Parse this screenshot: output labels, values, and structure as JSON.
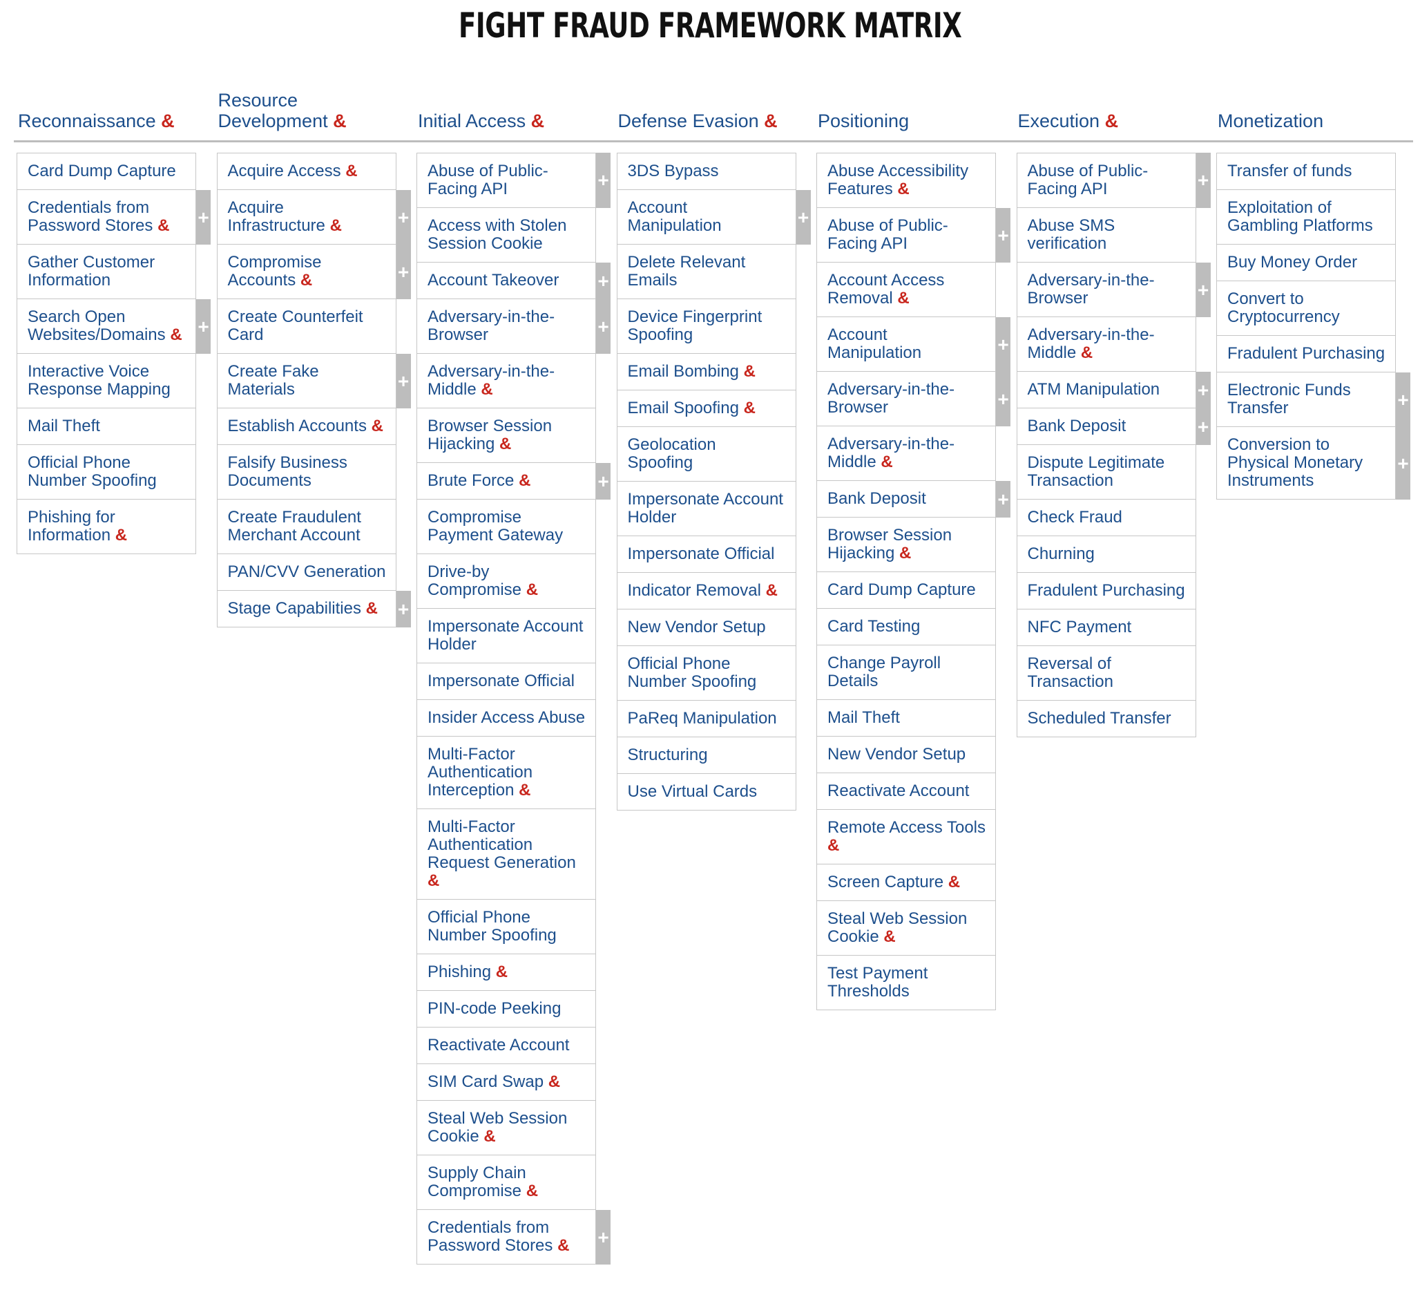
{
  "title": "FIGHT FRAUD FRAMEWORK MATRIX",
  "colors": {
    "text": "#1d4f8c",
    "ampersand": "#c8261d",
    "expand_tab": "#bdbdbd",
    "border": "#c6c6c6"
  },
  "amp_symbol": "&",
  "expand_symbol": "+",
  "columns": [
    {
      "label": "Reconnaissance",
      "amp": true,
      "items": [
        {
          "label": "Card Dump Capture"
        },
        {
          "label": "Credentials from Password Stores",
          "amp": true,
          "plus": true
        },
        {
          "label": "Gather Customer Information"
        },
        {
          "label": "Search Open Websites/Domains",
          "amp": true,
          "plus": true
        },
        {
          "label": "Interactive Voice Response Mapping"
        },
        {
          "label": "Mail Theft"
        },
        {
          "label": "Official Phone Number Spoofing"
        },
        {
          "label": "Phishing for Information",
          "amp": true
        }
      ]
    },
    {
      "label": "Resource Development",
      "amp": true,
      "items": [
        {
          "label": "Acquire Access",
          "amp": true
        },
        {
          "label": "Acquire Infrastructure",
          "amp": true,
          "plus": true
        },
        {
          "label": "Compromise Accounts",
          "amp": true,
          "plus": true
        },
        {
          "label": "Create Counterfeit Card"
        },
        {
          "label": "Create Fake Materials",
          "plus": true
        },
        {
          "label": "Establish Accounts",
          "amp": true
        },
        {
          "label": "Falsify Business Documents"
        },
        {
          "label": "Create Fraudulent Merchant Account"
        },
        {
          "label": "PAN/CVV Generation"
        },
        {
          "label": "Stage Capabilities",
          "amp": true,
          "plus": true
        }
      ]
    },
    {
      "label": "Initial Access",
      "amp": true,
      "items": [
        {
          "label": "Abuse of Public-Facing API",
          "plus": true
        },
        {
          "label": "Access with Stolen Session Cookie"
        },
        {
          "label": "Account Takeover",
          "plus": true
        },
        {
          "label": "Adversary-in-the-Browser",
          "plus": true
        },
        {
          "label": "Adversary-in-the-Middle",
          "amp": true
        },
        {
          "label": "Browser Session Hijacking",
          "amp": true
        },
        {
          "label": "Brute Force",
          "amp": true,
          "plus": true
        },
        {
          "label": "Compromise Payment Gateway"
        },
        {
          "label": "Drive-by Compromise",
          "amp": true
        },
        {
          "label": "Impersonate Account Holder"
        },
        {
          "label": "Impersonate Official"
        },
        {
          "label": "Insider Access Abuse"
        },
        {
          "label": "Multi-Factor Authentication Interception",
          "amp": true
        },
        {
          "label": "Multi-Factor Authentication Request Generation",
          "amp": true
        },
        {
          "label": "Official Phone Number Spoofing"
        },
        {
          "label": "Phishing",
          "amp": true
        },
        {
          "label": "PIN-code Peeking"
        },
        {
          "label": "Reactivate Account"
        },
        {
          "label": "SIM Card Swap",
          "amp": true
        },
        {
          "label": "Steal Web Session Cookie",
          "amp": true
        },
        {
          "label": "Supply Chain Compromise",
          "amp": true
        },
        {
          "label": "Credentials from Password Stores",
          "amp": true,
          "plus": true
        }
      ]
    },
    {
      "label": "Defense Evasion",
      "amp": true,
      "items": [
        {
          "label": "3DS Bypass"
        },
        {
          "label": "Account Manipulation",
          "plus": true
        },
        {
          "label": "Delete Relevant Emails"
        },
        {
          "label": "Device Fingerprint Spoofing"
        },
        {
          "label": "Email Bombing",
          "amp": true
        },
        {
          "label": "Email Spoofing",
          "amp": true
        },
        {
          "label": "Geolocation Spoofing"
        },
        {
          "label": "Impersonate Account Holder"
        },
        {
          "label": "Impersonate Official"
        },
        {
          "label": "Indicator Removal",
          "amp": true
        },
        {
          "label": "New Vendor Setup"
        },
        {
          "label": "Official Phone Number Spoofing"
        },
        {
          "label": "PaReq Manipulation"
        },
        {
          "label": "Structuring"
        },
        {
          "label": "Use Virtual Cards"
        }
      ]
    },
    {
      "label": "Positioning",
      "amp": false,
      "items": [
        {
          "label": "Abuse Accessibility Features",
          "amp": true
        },
        {
          "label": "Abuse of Public-Facing API",
          "plus": true
        },
        {
          "label": "Account Access Removal",
          "amp": true
        },
        {
          "label": "Account Manipulation",
          "plus": true
        },
        {
          "label": "Adversary-in-the-Browser",
          "plus": true
        },
        {
          "label": "Adversary-in-the-Middle",
          "amp": true
        },
        {
          "label": "Bank Deposit",
          "plus": true
        },
        {
          "label": "Browser Session Hijacking",
          "amp": true
        },
        {
          "label": "Card Dump Capture"
        },
        {
          "label": "Card Testing"
        },
        {
          "label": "Change Payroll Details"
        },
        {
          "label": "Mail Theft"
        },
        {
          "label": "New Vendor Setup"
        },
        {
          "label": "Reactivate Account"
        },
        {
          "label": "Remote Access Tools",
          "amp": true
        },
        {
          "label": "Screen Capture",
          "amp": true
        },
        {
          "label": "Steal Web Session Cookie",
          "amp": true
        },
        {
          "label": "Test Payment Thresholds"
        }
      ]
    },
    {
      "label": "Execution",
      "amp": true,
      "items": [
        {
          "label": "Abuse of Public-Facing API",
          "plus": true
        },
        {
          "label": "Abuse SMS verification"
        },
        {
          "label": "Adversary-in-the-Browser",
          "plus": true
        },
        {
          "label": "Adversary-in-the-Middle",
          "amp": true
        },
        {
          "label": "ATM Manipulation",
          "plus": true
        },
        {
          "label": "Bank Deposit",
          "plus": true
        },
        {
          "label": "Dispute Legitimate Transaction"
        },
        {
          "label": "Check Fraud"
        },
        {
          "label": "Churning"
        },
        {
          "label": "Fradulent Purchasing"
        },
        {
          "label": "NFC Payment"
        },
        {
          "label": "Reversal of Transaction"
        },
        {
          "label": "Scheduled Transfer"
        }
      ]
    },
    {
      "label": "Monetization",
      "amp": false,
      "items": [
        {
          "label": "Transfer of funds"
        },
        {
          "label": "Exploitation of Gambling Platforms"
        },
        {
          "label": "Buy Money Order"
        },
        {
          "label": "Convert to Cryptocurrency"
        },
        {
          "label": "Fradulent Purchasing"
        },
        {
          "label": "Electronic Funds Transfer",
          "plus": true
        },
        {
          "label": "Conversion to Physical Monetary Instruments",
          "plus": true
        }
      ]
    }
  ]
}
